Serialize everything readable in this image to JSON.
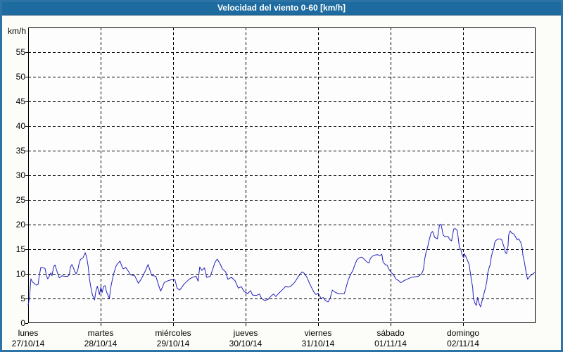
{
  "window": {
    "title": "Velocidad del viento 0-60 [km/h]"
  },
  "colors": {
    "titlebar_bg": "#1e6b9f",
    "titlebar_text": "#ffffff",
    "frame_border": "#2e73a6",
    "page_bg": "#fcfdf9",
    "plot_bg": "#fdfdfd",
    "grid": "#000000",
    "axis": "#000000",
    "line": "#2222bd",
    "label_text": "#000000"
  },
  "chart_data": {
    "type": "line",
    "title": "Velocidad del viento 0-60 [km/h]",
    "unit_label": "km/h",
    "ylabel": "km/h",
    "ylim": [
      0,
      60
    ],
    "y_ticks": [
      0,
      5,
      10,
      15,
      20,
      25,
      30,
      35,
      40,
      45,
      50,
      55
    ],
    "x_hours_range": [
      0,
      168
    ],
    "grid": "dashed",
    "legend": "none",
    "days": [
      {
        "name": "lunes",
        "date": "27/10/14"
      },
      {
        "name": "martes",
        "date": "28/10/14"
      },
      {
        "name": "miércoles",
        "date": "29/10/14"
      },
      {
        "name": "jueves",
        "date": "30/10/14"
      },
      {
        "name": "viernes",
        "date": "31/10/14"
      },
      {
        "name": "sábado",
        "date": "01/11/14"
      },
      {
        "name": "domingo",
        "date": "02/11/14"
      }
    ],
    "series": [
      {
        "name": "Velocidad del viento",
        "color": "#2222bd",
        "points": [
          [
            0,
            3.6
          ],
          [
            0.5,
            5.5
          ],
          [
            0.9,
            9.0
          ],
          [
            1.4,
            8.4
          ],
          [
            2.1,
            8.0
          ],
          [
            2.8,
            7.7
          ],
          [
            3.3,
            7.9
          ],
          [
            3.7,
            9.7
          ],
          [
            4.2,
            11.3
          ],
          [
            5.1,
            11.2
          ],
          [
            5.6,
            11.1
          ],
          [
            6.1,
            9.5
          ],
          [
            6.5,
            9.0
          ],
          [
            7.0,
            9.5
          ],
          [
            7.5,
            10.2
          ],
          [
            7.9,
            9.6
          ],
          [
            8.4,
            11.4
          ],
          [
            8.9,
            11.8
          ],
          [
            9.3,
            11.0
          ],
          [
            9.8,
            10.0
          ],
          [
            10.3,
            9.2
          ],
          [
            11.2,
            9.6
          ],
          [
            12.2,
            9.5
          ],
          [
            13.1,
            9.5
          ],
          [
            13.6,
            9.8
          ],
          [
            14.0,
            11.4
          ],
          [
            14.5,
            11.9
          ],
          [
            15.0,
            11.2
          ],
          [
            15.4,
            10.5
          ],
          [
            15.9,
            10.0
          ],
          [
            16.4,
            10.7
          ],
          [
            16.8,
            11.9
          ],
          [
            17.3,
            12.9
          ],
          [
            18.2,
            13.3
          ],
          [
            18.9,
            14.3
          ],
          [
            19.4,
            13.3
          ],
          [
            19.9,
            11.4
          ],
          [
            20.3,
            9.0
          ],
          [
            20.8,
            7.1
          ],
          [
            21.3,
            5.7
          ],
          [
            22.0,
            4.7
          ],
          [
            22.4,
            6.4
          ],
          [
            22.9,
            7.5
          ],
          [
            23.4,
            6.4
          ],
          [
            23.6,
            5.8
          ],
          [
            24.1,
            7.3
          ],
          [
            24.5,
            6.2
          ],
          [
            25.0,
            7.5
          ],
          [
            25.5,
            7.6
          ],
          [
            25.9,
            6.4
          ],
          [
            26.9,
            5.0
          ],
          [
            27.3,
            7.1
          ],
          [
            27.8,
            8.6
          ],
          [
            28.3,
            10.0
          ],
          [
            29.0,
            11.4
          ],
          [
            29.4,
            11.9
          ],
          [
            30.4,
            12.6
          ],
          [
            31.1,
            11.4
          ],
          [
            31.5,
            11.0
          ],
          [
            32.3,
            11.3
          ],
          [
            33.2,
            10.5
          ],
          [
            33.9,
            9.8
          ],
          [
            35.3,
            9.6
          ],
          [
            36.5,
            8.1
          ],
          [
            37.4,
            8.9
          ],
          [
            38.1,
            9.7
          ],
          [
            39.0,
            10.9
          ],
          [
            39.7,
            11.9
          ],
          [
            40.9,
            9.7
          ],
          [
            42.3,
            9.5
          ],
          [
            43.5,
            7.1
          ],
          [
            43.9,
            6.5
          ],
          [
            45.1,
            8.3
          ],
          [
            46.3,
            8.6
          ],
          [
            47.4,
            8.8
          ],
          [
            48.6,
            8.8
          ],
          [
            49.3,
            7.1
          ],
          [
            50.2,
            6.7
          ],
          [
            51.6,
            7.9
          ],
          [
            53.3,
            8.9
          ],
          [
            54.4,
            9.3
          ],
          [
            55.6,
            9.5
          ],
          [
            56.3,
            8.5
          ],
          [
            56.8,
            11.4
          ],
          [
            57.5,
            10.7
          ],
          [
            58.4,
            11.2
          ],
          [
            59.1,
            9.3
          ],
          [
            60.3,
            9.5
          ],
          [
            61.9,
            12.4
          ],
          [
            62.6,
            13.0
          ],
          [
            63.6,
            12.0
          ],
          [
            64.3,
            11.0
          ],
          [
            65.4,
            10.4
          ],
          [
            66.1,
            8.9
          ],
          [
            67.3,
            9.3
          ],
          [
            68.5,
            8.6
          ],
          [
            69.6,
            7.1
          ],
          [
            70.6,
            7.4
          ],
          [
            71.5,
            6.4
          ],
          [
            72.7,
            6.0
          ],
          [
            73.6,
            6.6
          ],
          [
            74.3,
            5.7
          ],
          [
            75.5,
            5.6
          ],
          [
            76.6,
            5.9
          ],
          [
            77.3,
            5.0
          ],
          [
            78.3,
            4.6
          ],
          [
            79.4,
            4.8
          ],
          [
            80.6,
            5.6
          ],
          [
            81.3,
            5.9
          ],
          [
            82.0,
            5.4
          ],
          [
            83.2,
            6.2
          ],
          [
            84.4,
            6.9
          ],
          [
            85.3,
            7.5
          ],
          [
            86.0,
            7.3
          ],
          [
            86.7,
            7.4
          ],
          [
            87.9,
            8.0
          ],
          [
            88.8,
            8.8
          ],
          [
            89.5,
            9.5
          ],
          [
            90.7,
            10.4
          ],
          [
            91.4,
            10.1
          ],
          [
            92.3,
            9.3
          ],
          [
            93.0,
            8.3
          ],
          [
            93.7,
            7.4
          ],
          [
            94.6,
            6.3
          ],
          [
            95.3,
            5.8
          ],
          [
            96.0,
            6.1
          ],
          [
            97.0,
            5.0
          ],
          [
            97.7,
            5.2
          ],
          [
            98.4,
            4.6
          ],
          [
            99.3,
            4.3
          ],
          [
            100.0,
            5.1
          ],
          [
            100.7,
            6.7
          ],
          [
            101.6,
            6.3
          ],
          [
            102.6,
            6.0
          ],
          [
            104.7,
            6.0
          ],
          [
            105.9,
            8.6
          ],
          [
            106.6,
            9.7
          ],
          [
            107.5,
            10.7
          ],
          [
            108.2,
            11.9
          ],
          [
            108.9,
            12.9
          ],
          [
            109.8,
            13.3
          ],
          [
            110.5,
            13.4
          ],
          [
            111.2,
            13.0
          ],
          [
            112.2,
            12.4
          ],
          [
            112.9,
            12.2
          ],
          [
            113.3,
            13.1
          ],
          [
            114.0,
            13.6
          ],
          [
            114.7,
            13.8
          ],
          [
            115.7,
            13.9
          ],
          [
            116.4,
            13.7
          ],
          [
            117.1,
            14.0
          ],
          [
            117.5,
            12.4
          ],
          [
            118.2,
            11.9
          ],
          [
            118.9,
            11.7
          ],
          [
            119.4,
            11.0
          ],
          [
            120.3,
            10.2
          ],
          [
            121.0,
            9.8
          ],
          [
            121.7,
            9.0
          ],
          [
            122.7,
            8.6
          ],
          [
            123.4,
            8.2
          ],
          [
            124.1,
            8.5
          ],
          [
            125.0,
            8.8
          ],
          [
            126.2,
            9.1
          ],
          [
            126.9,
            9.3
          ],
          [
            128.0,
            9.4
          ],
          [
            129.2,
            9.5
          ],
          [
            129.9,
            9.8
          ],
          [
            130.6,
            10.4
          ],
          [
            130.9,
            11.0
          ],
          [
            131.3,
            13.0
          ],
          [
            131.8,
            14.5
          ],
          [
            132.3,
            15.5
          ],
          [
            132.7,
            16.7
          ],
          [
            133.4,
            18.3
          ],
          [
            133.9,
            18.6
          ],
          [
            134.6,
            17.4
          ],
          [
            135.5,
            17.1
          ],
          [
            136.2,
            19.9
          ],
          [
            136.7,
            20.1
          ],
          [
            137.4,
            17.9
          ],
          [
            138.1,
            17.5
          ],
          [
            139.0,
            17.6
          ],
          [
            139.7,
            16.9
          ],
          [
            140.2,
            16.7
          ],
          [
            140.9,
            19.1
          ],
          [
            141.4,
            19.2
          ],
          [
            142.1,
            18.8
          ],
          [
            142.8,
            15.2
          ],
          [
            143.2,
            15.1
          ],
          [
            143.7,
            13.8
          ],
          [
            144.2,
            13.3
          ],
          [
            144.4,
            14.1
          ],
          [
            145.1,
            13.3
          ],
          [
            146.0,
            11.9
          ],
          [
            146.7,
            9.0
          ],
          [
            147.2,
            7.2
          ],
          [
            147.4,
            5.2
          ],
          [
            147.9,
            4.1
          ],
          [
            148.4,
            3.6
          ],
          [
            148.8,
            5.2
          ],
          [
            149.3,
            4.0
          ],
          [
            149.8,
            3.3
          ],
          [
            150.2,
            4.3
          ],
          [
            150.7,
            5.5
          ],
          [
            151.4,
            7.1
          ],
          [
            151.9,
            8.6
          ],
          [
            152.1,
            10.0
          ],
          [
            152.6,
            11.2
          ],
          [
            153.1,
            12.1
          ],
          [
            153.3,
            13.3
          ],
          [
            153.7,
            14.3
          ],
          [
            154.2,
            15.3
          ],
          [
            154.4,
            16.2
          ],
          [
            154.9,
            16.8
          ],
          [
            155.4,
            17.0
          ],
          [
            156.1,
            17.1
          ],
          [
            156.8,
            16.9
          ],
          [
            157.7,
            15.2
          ],
          [
            158.0,
            14.3
          ],
          [
            158.4,
            14.1
          ],
          [
            158.9,
            15.7
          ],
          [
            159.1,
            17.9
          ],
          [
            159.6,
            18.7
          ],
          [
            160.1,
            18.3
          ],
          [
            160.8,
            18.1
          ],
          [
            161.2,
            17.7
          ],
          [
            161.9,
            16.9
          ],
          [
            162.4,
            17.1
          ],
          [
            163.1,
            16.4
          ],
          [
            163.6,
            15.2
          ],
          [
            163.8,
            13.8
          ],
          [
            164.3,
            12.4
          ],
          [
            164.7,
            11.0
          ],
          [
            165.0,
            9.8
          ],
          [
            165.4,
            8.9
          ],
          [
            166.1,
            9.5
          ],
          [
            167.1,
            10.0
          ],
          [
            167.8,
            10.3
          ]
        ]
      }
    ]
  }
}
